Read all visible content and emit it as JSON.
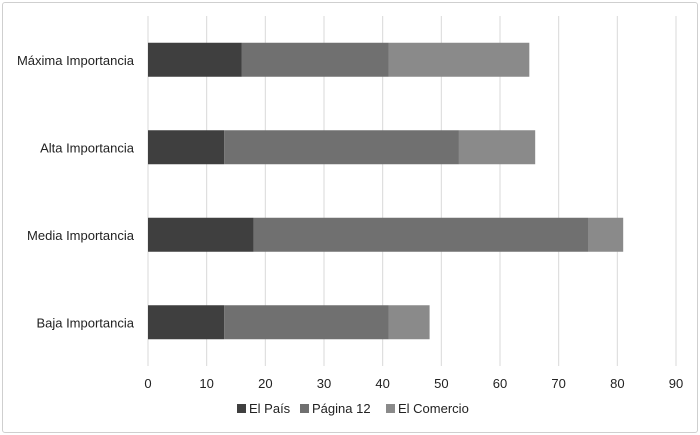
{
  "chart_data": {
    "type": "bar",
    "orientation": "horizontal",
    "stacked": true,
    "title": "",
    "xlabel": "",
    "ylabel": "",
    "categories": [
      "Máxima Importancia",
      "Alta Importancia",
      "Media Importancia",
      "Baja Importancia"
    ],
    "series": [
      {
        "name": "El País",
        "values": [
          16,
          13,
          18,
          13
        ],
        "color": "#3f3f3f"
      },
      {
        "name": "Página 12",
        "values": [
          25,
          40,
          57,
          28
        ],
        "color": "#707070"
      },
      {
        "name": "El Comercio",
        "values": [
          24,
          13,
          6,
          7
        ],
        "color": "#8a8a8a"
      }
    ],
    "xlim": [
      0,
      90
    ],
    "xticks": [
      "0",
      "10",
      "20",
      "30",
      "40",
      "50",
      "60",
      "70",
      "80",
      "90"
    ],
    "grid": "vertical",
    "legend": "bottom"
  }
}
